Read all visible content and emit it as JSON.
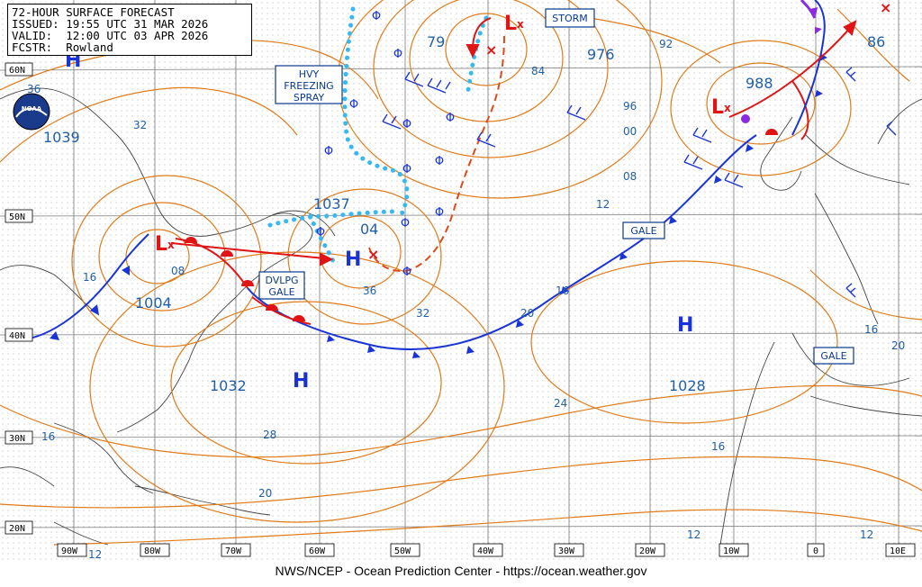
{
  "header": {
    "title": "72-HOUR SURFACE FORECAST",
    "issued": "ISSUED: 19:55 UTC 31 MAR 2026",
    "valid": "VALID:  12:00 UTC 03 APR 2026",
    "forecaster": "FCSTR:  Rowland"
  },
  "logo": {
    "text": "NOAA"
  },
  "footer": {
    "text": "NWS/NCEP - Ocean Prediction Center - https://ocean.weather.gov"
  },
  "lat_labels": [
    "60N",
    "50N",
    "40N",
    "30N",
    "20N"
  ],
  "lon_labels": [
    "90W",
    "80W",
    "70W",
    "60W",
    "50W",
    "40W",
    "30W",
    "20W",
    "10W",
    "0",
    "10E"
  ],
  "pressure_centers": [
    {
      "id": "h1",
      "symbol": "H",
      "value": "1039"
    },
    {
      "id": "l1",
      "symbol": "L",
      "value": "1004"
    },
    {
      "id": "h2",
      "symbol": "H",
      "value": "1037"
    },
    {
      "id": "h3",
      "symbol": "H",
      "value": "1032"
    },
    {
      "id": "h4",
      "symbol": "H",
      "value": "1028"
    },
    {
      "id": "l2",
      "symbol": "L",
      "value": "976"
    },
    {
      "id": "l3",
      "symbol": "L",
      "value": "988"
    }
  ],
  "isobar_labels": [
    "36",
    "32",
    "08",
    "16",
    "04",
    "36",
    "32",
    "79",
    "84",
    "92",
    "96",
    "00",
    "08",
    "12",
    "86",
    "16",
    "20",
    "24",
    "28",
    "20",
    "16",
    "12",
    "16",
    "12",
    "12",
    "16",
    "20"
  ],
  "warning_labels": {
    "storm": "STORM",
    "hvy_freezing_spray": [
      "HVY",
      "FREEZING",
      "SPRAY"
    ],
    "dvlpg_gale": [
      "DVLPG",
      "GALE"
    ],
    "gale_mid": "GALE",
    "gale_east": "GALE"
  },
  "colors": {
    "isobar": "#e07b1a",
    "cold_front": "#1a33d6",
    "warm_front": "#e01414",
    "occluded_front": "#8a2be2",
    "freezing_spray": "#36b8f0",
    "high": "#1a33d6",
    "low": "#e01414",
    "label": "#1f5fa8"
  }
}
